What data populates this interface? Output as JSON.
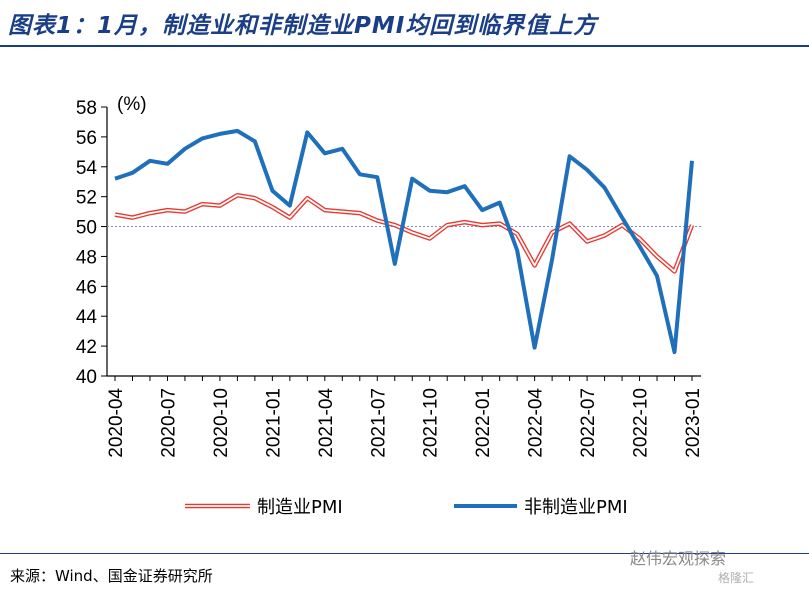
{
  "header": {
    "title": "图表1：1月，制造业和非制造业PMI均回到临界值上方"
  },
  "footer": {
    "source": "来源：Wind、国金证券研究所",
    "watermark": "赵伟宏观探索",
    "watermark_sub": "格隆汇"
  },
  "chart_data": {
    "type": "line",
    "unit_label": "(%)",
    "ylim": [
      40,
      58
    ],
    "yticks": [
      40,
      42,
      44,
      46,
      48,
      50,
      52,
      54,
      56,
      58
    ],
    "reference_line": 50,
    "grid": false,
    "legend_position": "bottom",
    "x": [
      "2020-04",
      "2020-05",
      "2020-06",
      "2020-07",
      "2020-08",
      "2020-09",
      "2020-10",
      "2020-11",
      "2020-12",
      "2021-01",
      "2021-02",
      "2021-03",
      "2021-04",
      "2021-05",
      "2021-06",
      "2021-07",
      "2021-08",
      "2021-09",
      "2021-10",
      "2021-11",
      "2021-12",
      "2022-01",
      "2022-02",
      "2022-03",
      "2022-04",
      "2022-05",
      "2022-06",
      "2022-07",
      "2022-08",
      "2022-09",
      "2022-10",
      "2022-11",
      "2022-12",
      "2023-01"
    ],
    "xtick_labels": [
      "2020-04",
      "2020-07",
      "2020-10",
      "2021-01",
      "2021-04",
      "2021-07",
      "2021-10",
      "2022-01",
      "2022-04",
      "2022-07",
      "2022-10",
      "2023-01"
    ],
    "series": [
      {
        "name": "制造业PMI",
        "color": "#e8382f",
        "style": "double-line",
        "values": [
          50.8,
          50.6,
          50.9,
          51.1,
          51.0,
          51.5,
          51.4,
          52.1,
          51.9,
          51.3,
          50.6,
          51.9,
          51.1,
          51.0,
          50.9,
          50.4,
          50.1,
          49.6,
          49.2,
          50.1,
          50.3,
          50.1,
          50.2,
          49.5,
          47.4,
          49.6,
          50.2,
          49.0,
          49.4,
          50.1,
          49.2,
          48.0,
          47.0,
          50.1
        ]
      },
      {
        "name": "非制造业PMI",
        "color": "#1f6fba",
        "style": "solid",
        "values": [
          53.2,
          53.6,
          54.4,
          54.2,
          55.2,
          55.9,
          56.2,
          56.4,
          55.7,
          52.4,
          51.4,
          56.3,
          54.9,
          55.2,
          53.5,
          53.3,
          47.5,
          53.2,
          52.4,
          52.3,
          52.7,
          51.1,
          51.6,
          48.4,
          41.9,
          47.8,
          54.7,
          53.8,
          52.6,
          50.6,
          48.7,
          46.7,
          41.6,
          54.4
        ]
      }
    ]
  }
}
